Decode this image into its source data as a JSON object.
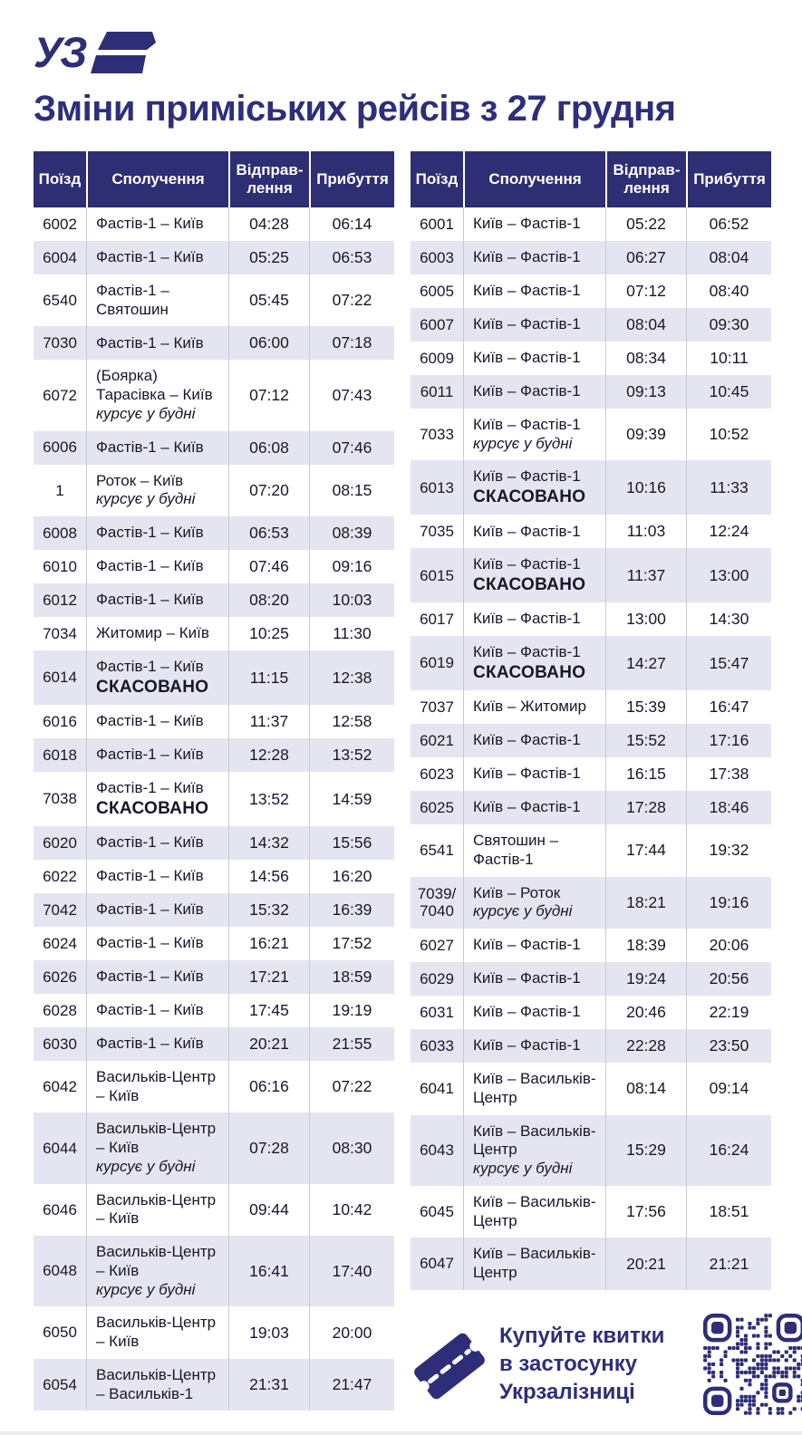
{
  "logo": {
    "text": "УЗ"
  },
  "title": "Зміни приміських рейсів з 27 грудня",
  "table_header": {
    "train": "Поїзд",
    "route": "Сполучення",
    "departure_line1": "Відправ-",
    "departure_line2": "лення",
    "arrival": "Прибуття"
  },
  "labels": {
    "cancelled": "СКАСОВАНО",
    "weekdays_note": "курсує у будні"
  },
  "tables": {
    "left": {
      "rows": [
        {
          "train": "6002",
          "route": "Фастів-1 – Київ",
          "dep": "04:28",
          "arr": "06:14"
        },
        {
          "train": "6004",
          "route": "Фастів-1 – Київ",
          "dep": "05:25",
          "arr": "06:53"
        },
        {
          "train": "6540",
          "route": "Фастів-1 – Святошин",
          "dep": "05:45",
          "arr": "07:22"
        },
        {
          "train": "7030",
          "route": "Фастів-1 – Київ",
          "dep": "06:00",
          "arr": "07:18"
        },
        {
          "train": "6072",
          "route": "(Боярка) Тарасівка – Київ",
          "note": "курсує у будні",
          "dep": "07:12",
          "arr": "07:43"
        },
        {
          "train": "6006",
          "route": "Фастів-1 – Київ",
          "dep": "06:08",
          "arr": "07:46"
        },
        {
          "train": "1",
          "route": "Роток – Київ",
          "note": "курсує у будні",
          "dep": "07:20",
          "arr": "08:15"
        },
        {
          "train": "6008",
          "route": "Фастів-1 – Київ",
          "dep": "06:53",
          "arr": "08:39"
        },
        {
          "train": "6010",
          "route": "Фастів-1 – Київ",
          "dep": "07:46",
          "arr": "09:16"
        },
        {
          "train": "6012",
          "route": "Фастів-1 – Київ",
          "dep": "08:20",
          "arr": "10:03"
        },
        {
          "train": "7034",
          "route": "Житомир – Київ",
          "dep": "10:25",
          "arr": "11:30"
        },
        {
          "train": "6014",
          "route": "Фастів-1 – Київ",
          "cancelled": true,
          "dep": "11:15",
          "arr": "12:38"
        },
        {
          "train": "6016",
          "route": "Фастів-1 – Київ",
          "dep": "11:37",
          "arr": "12:58"
        },
        {
          "train": "6018",
          "route": "Фастів-1 – Київ",
          "dep": "12:28",
          "arr": "13:52"
        },
        {
          "train": "7038",
          "route": "Фастів-1 – Київ",
          "cancelled": true,
          "dep": "13:52",
          "arr": "14:59"
        },
        {
          "train": "6020",
          "route": "Фастів-1 – Київ",
          "dep": "14:32",
          "arr": "15:56"
        },
        {
          "train": "6022",
          "route": "Фастів-1 – Київ",
          "dep": "14:56",
          "arr": "16:20"
        },
        {
          "train": "7042",
          "route": "Фастів-1 – Київ",
          "dep": "15:32",
          "arr": "16:39"
        },
        {
          "train": "6024",
          "route": "Фастів-1 – Київ",
          "dep": "16:21",
          "arr": "17:52"
        },
        {
          "train": "6026",
          "route": "Фастів-1 – Київ",
          "dep": "17:21",
          "arr": "18:59"
        },
        {
          "train": "6028",
          "route": "Фастів-1 – Київ",
          "dep": "17:45",
          "arr": "19:19"
        },
        {
          "train": "6030",
          "route": "Фастів-1 – Київ",
          "dep": "20:21",
          "arr": "21:55"
        },
        {
          "train": "6042",
          "route": "Васильків-Центр – Київ",
          "dep": "06:16",
          "arr": "07:22"
        },
        {
          "train": "6044",
          "route": "Васильків-Центр – Київ",
          "note": "курсує у будні",
          "dep": "07:28",
          "arr": "08:30"
        },
        {
          "train": "6046",
          "route": "Васильків-Центр – Київ",
          "dep": "09:44",
          "arr": "10:42"
        },
        {
          "train": "6048",
          "route": "Васильків-Центр – Київ",
          "note": "курсує у будні",
          "dep": "16:41",
          "arr": "17:40"
        },
        {
          "train": "6050",
          "route": "Васильків-Центр – Київ",
          "dep": "19:03",
          "arr": "20:00"
        },
        {
          "train": "6054",
          "route": "Васильків-Центр – Васильків-1",
          "dep": "21:31",
          "arr": "21:47"
        }
      ]
    },
    "right": {
      "rows": [
        {
          "train": "6001",
          "route": "Київ – Фастів-1",
          "dep": "05:22",
          "arr": "06:52"
        },
        {
          "train": "6003",
          "route": "Київ – Фастів-1",
          "dep": "06:27",
          "arr": "08:04"
        },
        {
          "train": "6005",
          "route": "Київ – Фастів-1",
          "dep": "07:12",
          "arr": "08:40"
        },
        {
          "train": "6007",
          "route": "Київ – Фастів-1",
          "dep": "08:04",
          "arr": "09:30"
        },
        {
          "train": "6009",
          "route": "Київ – Фастів-1",
          "dep": "08:34",
          "arr": "10:11"
        },
        {
          "train": "6011",
          "route": "Київ – Фастів-1",
          "dep": "09:13",
          "arr": "10:45"
        },
        {
          "train": "7033",
          "route": "Київ – Фастів-1",
          "note": "курсує у будні",
          "dep": "09:39",
          "arr": "10:52"
        },
        {
          "train": "6013",
          "route": "Київ – Фастів-1",
          "cancelled": true,
          "dep": "10:16",
          "arr": "11:33"
        },
        {
          "train": "7035",
          "route": "Київ – Фастів-1",
          "dep": "11:03",
          "arr": "12:24"
        },
        {
          "train": "6015",
          "route": "Київ – Фастів-1",
          "cancelled": true,
          "dep": "11:37",
          "arr": "13:00"
        },
        {
          "train": "6017",
          "route": "Київ – Фастів-1",
          "dep": "13:00",
          "arr": "14:30"
        },
        {
          "train": "6019",
          "route": "Київ – Фастів-1",
          "cancelled": true,
          "dep": "14:27",
          "arr": "15:47"
        },
        {
          "train": "7037",
          "route": "Київ – Житомир",
          "dep": "15:39",
          "arr": "16:47"
        },
        {
          "train": "6021",
          "route": "Київ – Фастів-1",
          "dep": "15:52",
          "arr": "17:16"
        },
        {
          "train": "6023",
          "route": "Київ – Фастів-1",
          "dep": "16:15",
          "arr": "17:38"
        },
        {
          "train": "6025",
          "route": "Київ – Фастів-1",
          "dep": "17:28",
          "arr": "18:46"
        },
        {
          "train": "6541",
          "route": "Святошин – Фастів-1",
          "dep": "17:44",
          "arr": "19:32"
        },
        {
          "train": "7039/ 7040",
          "route": "Київ – Роток",
          "note": "курсує у будні",
          "dep": "18:21",
          "arr": "19:16"
        },
        {
          "train": "6027",
          "route": "Київ – Фастів-1",
          "dep": "18:39",
          "arr": "20:06"
        },
        {
          "train": "6029",
          "route": "Київ – Фастів-1",
          "dep": "19:24",
          "arr": "20:56"
        },
        {
          "train": "6031",
          "route": "Київ – Фастів-1",
          "dep": "20:46",
          "arr": "22:19"
        },
        {
          "train": "6033",
          "route": "Київ – Фастів-1",
          "dep": "22:28",
          "arr": "23:50"
        },
        {
          "train": "6041",
          "route": "Київ – Васильків-Центр",
          "dep": "08:14",
          "arr": "09:14"
        },
        {
          "train": "6043",
          "route": "Київ – Васильків-Центр",
          "note": "курсує у будні",
          "dep": "15:29",
          "arr": "16:24"
        },
        {
          "train": "6045",
          "route": "Київ – Васильків-Центр",
          "dep": "17:56",
          "arr": "18:51"
        },
        {
          "train": "6047",
          "route": "Київ – Васильків-Центр",
          "dep": "20:21",
          "arr": "21:21"
        }
      ]
    }
  },
  "promo": {
    "lines": [
      "Купуйте квитки",
      "в застосунку",
      "Укрзалізниці"
    ]
  },
  "colors": {
    "navy": "#2e2e74",
    "title": "#2e2e7d",
    "row_alt": "#e5e5f1",
    "text": "#17172b",
    "separator": "#c9c9d6"
  }
}
